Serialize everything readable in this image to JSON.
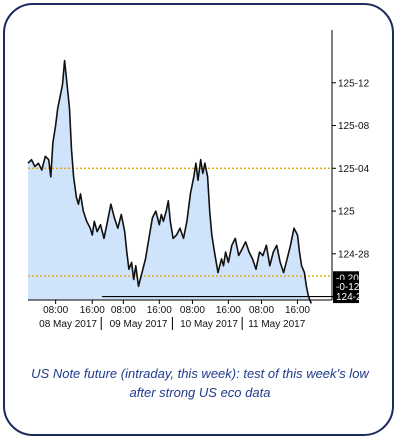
{
  "caption": {
    "line1": "US Note future (intraday, this week): test of this week’s low",
    "line2": "after strong US eco data"
  },
  "colors": {
    "area": "#cfe3fa",
    "price_line": "#111111",
    "dotted_lines": "#e8a800",
    "support_line": "#000000",
    "frame": "#1d2a5c",
    "caption": "#1f3b8c"
  },
  "chart_data": {
    "type": "area",
    "title": "",
    "xlabel": "",
    "ylabel": "",
    "y_tick_labels": [
      "125-12",
      "125-08",
      "125-04",
      "125",
      "124-28"
    ],
    "y_tick_values": [
      125.375,
      125.25,
      125.125,
      125.0,
      124.875
    ],
    "ylim": [
      124.74,
      125.5
    ],
    "x_time_labels": [
      "08:00",
      "16:00",
      "08:00",
      "16:00",
      "08:00",
      "16:00",
      "08:00",
      "16:00"
    ],
    "x_time_values": [
      4.0,
      9.3,
      13.8,
      19.0,
      23.8,
      29.0,
      33.8,
      39.0
    ],
    "x_date_labels": [
      "08 May 2017",
      "09 May 2017",
      "10 May 2017",
      "11 May 2017"
    ],
    "x_date_centers": [
      5.8,
      16.0,
      26.2,
      36.0
    ],
    "x_day_separators": [
      10.6,
      20.9,
      31.0
    ],
    "xlim": [
      0,
      44
    ],
    "series": [
      {
        "x": [
          0,
          0.5,
          1.0,
          1.5,
          2.0,
          2.5,
          3.0,
          3.3,
          3.6,
          4.0,
          4.3,
          4.6,
          5.0,
          5.3,
          5.6,
          6.0,
          6.3,
          6.6,
          7.0,
          7.3,
          7.6,
          8.0,
          8.5,
          9.0,
          9.3,
          9.6,
          10.0,
          10.5,
          11.0,
          11.5,
          12.0,
          12.5,
          13.0,
          13.5,
          14.0,
          14.3,
          14.6,
          15.0,
          15.3,
          15.6,
          16.0,
          16.5,
          17.0,
          17.5,
          18.0,
          18.5,
          19.0,
          19.3,
          19.6,
          20.0,
          20.3,
          20.6,
          21.0,
          21.5,
          22.0,
          22.5,
          23.0,
          23.5,
          24.0,
          24.3,
          24.6,
          25.0,
          25.3,
          25.6,
          26.0,
          26.3,
          26.6,
          27.0,
          27.5,
          28.0,
          28.3,
          28.6,
          29.0,
          29.5,
          30.0,
          30.5,
          31.0,
          31.5,
          32.0,
          32.5,
          33.0,
          33.5,
          34.0,
          34.5,
          35.0,
          35.5,
          36.0,
          36.5,
          37.0,
          37.5,
          38.0,
          38.5,
          39.0,
          39.3,
          39.6,
          40.0,
          40.3,
          40.6,
          41.0
        ],
        "y": [
          125.14,
          125.15,
          125.13,
          125.14,
          125.12,
          125.16,
          125.15,
          125.1,
          125.2,
          125.25,
          125.3,
          125.33,
          125.37,
          125.44,
          125.38,
          125.3,
          125.18,
          125.1,
          125.04,
          125.02,
          125.05,
          125.0,
          124.97,
          124.95,
          124.93,
          124.97,
          124.94,
          124.96,
          124.92,
          124.97,
          125.02,
          124.98,
          124.95,
          124.99,
          124.94,
          124.88,
          124.83,
          124.85,
          124.8,
          124.84,
          124.78,
          124.82,
          124.86,
          124.92,
          124.98,
          125.0,
          124.96,
          124.99,
          124.97,
          125.0,
          125.03,
          124.97,
          124.92,
          124.93,
          124.95,
          124.92,
          124.97,
          125.05,
          125.1,
          125.14,
          125.09,
          125.15,
          125.11,
          125.14,
          125.1,
          125.0,
          124.93,
          124.88,
          124.82,
          124.86,
          124.84,
          124.88,
          124.85,
          124.9,
          124.92,
          124.87,
          124.89,
          124.91,
          124.88,
          124.86,
          124.83,
          124.88,
          124.87,
          124.9,
          124.84,
          124.88,
          124.9,
          124.85,
          124.82,
          124.86,
          124.9,
          124.95,
          124.93,
          124.88,
          124.84,
          124.82,
          124.78,
          124.75,
          124.73
        ]
      }
    ],
    "dotted_levels": [
      125.125,
      124.81
    ],
    "support_level": 124.75,
    "support_x_start": 10.7,
    "value_boxes": [
      {
        "label": "-0.20%",
        "y": 124.805
      },
      {
        "label": "-0-12",
        "y": 124.78
      },
      {
        "label": "124-24",
        "y": 124.75
      }
    ],
    "grid": false
  }
}
